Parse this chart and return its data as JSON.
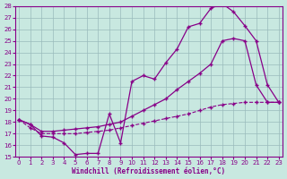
{
  "xlabel": "Windchill (Refroidissement éolien,°C)",
  "bg_color": "#c8e8e0",
  "line_color": "#880088",
  "grid_color": "#99bbbb",
  "xlim": [
    0,
    23
  ],
  "ylim": [
    15,
    28
  ],
  "xticks": [
    0,
    1,
    2,
    3,
    4,
    5,
    6,
    7,
    8,
    9,
    10,
    11,
    12,
    13,
    14,
    15,
    16,
    17,
    18,
    19,
    20,
    21,
    22,
    23
  ],
  "yticks": [
    15,
    16,
    17,
    18,
    19,
    20,
    21,
    22,
    23,
    24,
    25,
    26,
    27,
    28
  ],
  "curve1_x": [
    0,
    1,
    2,
    3,
    4,
    5,
    6,
    7,
    8,
    9,
    10,
    11,
    12,
    13,
    14,
    15,
    16,
    17,
    18,
    19,
    20,
    21,
    22,
    23
  ],
  "curve1_y": [
    18.2,
    17.8,
    16.8,
    16.7,
    16.2,
    15.2,
    15.3,
    15.3,
    18.7,
    16.2,
    21.5,
    22.0,
    21.7,
    23.1,
    24.3,
    26.2,
    26.5,
    27.8,
    28.2,
    27.5,
    26.3,
    25.0,
    21.2,
    19.7
  ],
  "curve2_x": [
    0,
    1,
    2,
    3,
    4,
    5,
    6,
    7,
    8,
    9,
    10,
    11,
    12,
    13,
    14,
    15,
    16,
    17,
    18,
    19,
    20,
    21,
    22,
    23
  ],
  "curve2_y": [
    18.2,
    17.8,
    17.2,
    17.2,
    17.3,
    17.4,
    17.5,
    17.6,
    17.8,
    18.0,
    18.5,
    19.0,
    19.5,
    20.0,
    20.8,
    21.5,
    22.2,
    23.0,
    25.0,
    25.2,
    25.0,
    21.2,
    19.7,
    19.7
  ],
  "curve3_x": [
    0,
    1,
    2,
    3,
    4,
    5,
    6,
    7,
    8,
    9,
    10,
    11,
    12,
    13,
    14,
    15,
    16,
    17,
    18,
    19,
    20,
    21,
    22,
    23
  ],
  "curve3_y": [
    18.2,
    17.5,
    17.0,
    17.0,
    17.0,
    17.0,
    17.1,
    17.2,
    17.3,
    17.5,
    17.7,
    17.9,
    18.1,
    18.3,
    18.5,
    18.7,
    19.0,
    19.3,
    19.5,
    19.6,
    19.7,
    19.7,
    19.7,
    19.7
  ]
}
